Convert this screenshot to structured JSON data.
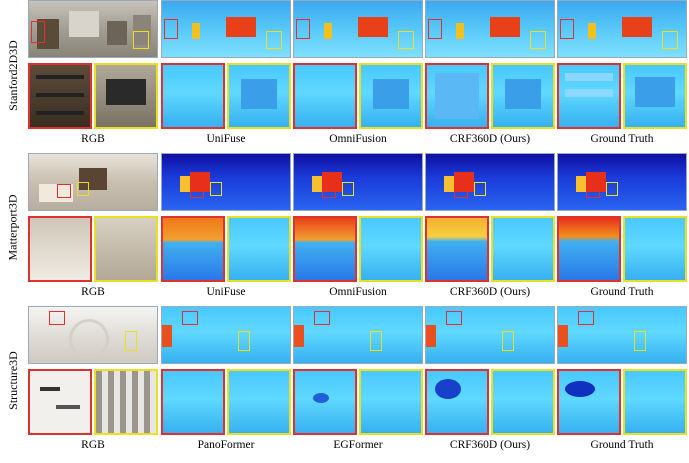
{
  "rows": [
    {
      "label": "Stanford2D3D",
      "captions": [
        "RGB",
        "UniFuse",
        "OmniFusion",
        "CRF360D (Ours)",
        "Ground Truth"
      ]
    },
    {
      "label": "Matterport3D",
      "captions": [
        "RGB",
        "UniFuse",
        "OmniFusion",
        "CRF360D (Ours)",
        "Ground Truth"
      ]
    },
    {
      "label": "Structure3D",
      "captions": [
        "RGB",
        "PanoFormer",
        "EGFormer",
        "CRF360D (Ours)",
        "Ground Truth"
      ]
    }
  ]
}
